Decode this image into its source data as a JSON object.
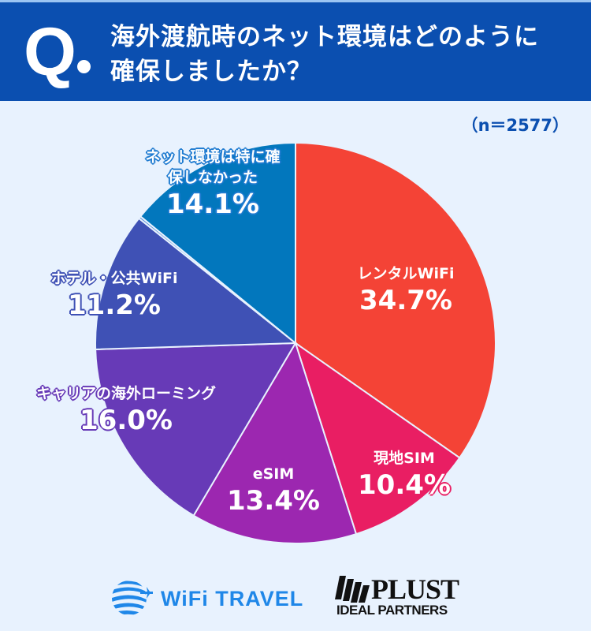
{
  "header": {
    "q_mark": "Q",
    "question_line1": "海外渡航時のネット環境はどのように",
    "question_line2": "確保しましたか？"
  },
  "sample_size": "（n＝2577）",
  "chart_data": {
    "type": "pie",
    "title": "海外渡航時のネット環境はどのように確保しましたか？",
    "n": 2577,
    "start_angle": "12 o'clock, clockwise",
    "categories": [
      "レンタルWiFi",
      "現地SIM",
      "eSIM",
      "キャリアの海外ローミング",
      "ホテル・公共WiFi",
      "ネット環境は特に確保しなかった"
    ],
    "values": [
      34.7,
      10.4,
      13.4,
      16.0,
      11.2,
      14.1
    ],
    "unit": "%",
    "colors": [
      "#f44336",
      "#e91e63",
      "#9c27b0",
      "#673ab7",
      "#3f51b5",
      "#0277bd"
    ],
    "legend": "none (labels on slices)"
  },
  "labels": {
    "rental": {
      "name": "レンタルWiFi",
      "pct": "34.7%"
    },
    "local_sim": {
      "name": "現地SIM",
      "pct": "10.4%"
    },
    "esim": {
      "name": "eSIM",
      "pct": "13.4%"
    },
    "roaming": {
      "name": "キャリアの海外ローミング",
      "pct": "16.0%"
    },
    "hotel": {
      "name": "ホテル・公共WiFi",
      "pct": "11.2%"
    },
    "none_line1": "ネット環境は特に確",
    "none_line2": "保しなかった",
    "none_pct": "14.1%"
  },
  "footer": {
    "logo1": "WiFi TRAVEL",
    "logo2_main": "PLUST",
    "logo2_sub": "IDEAL PARTNERS"
  }
}
